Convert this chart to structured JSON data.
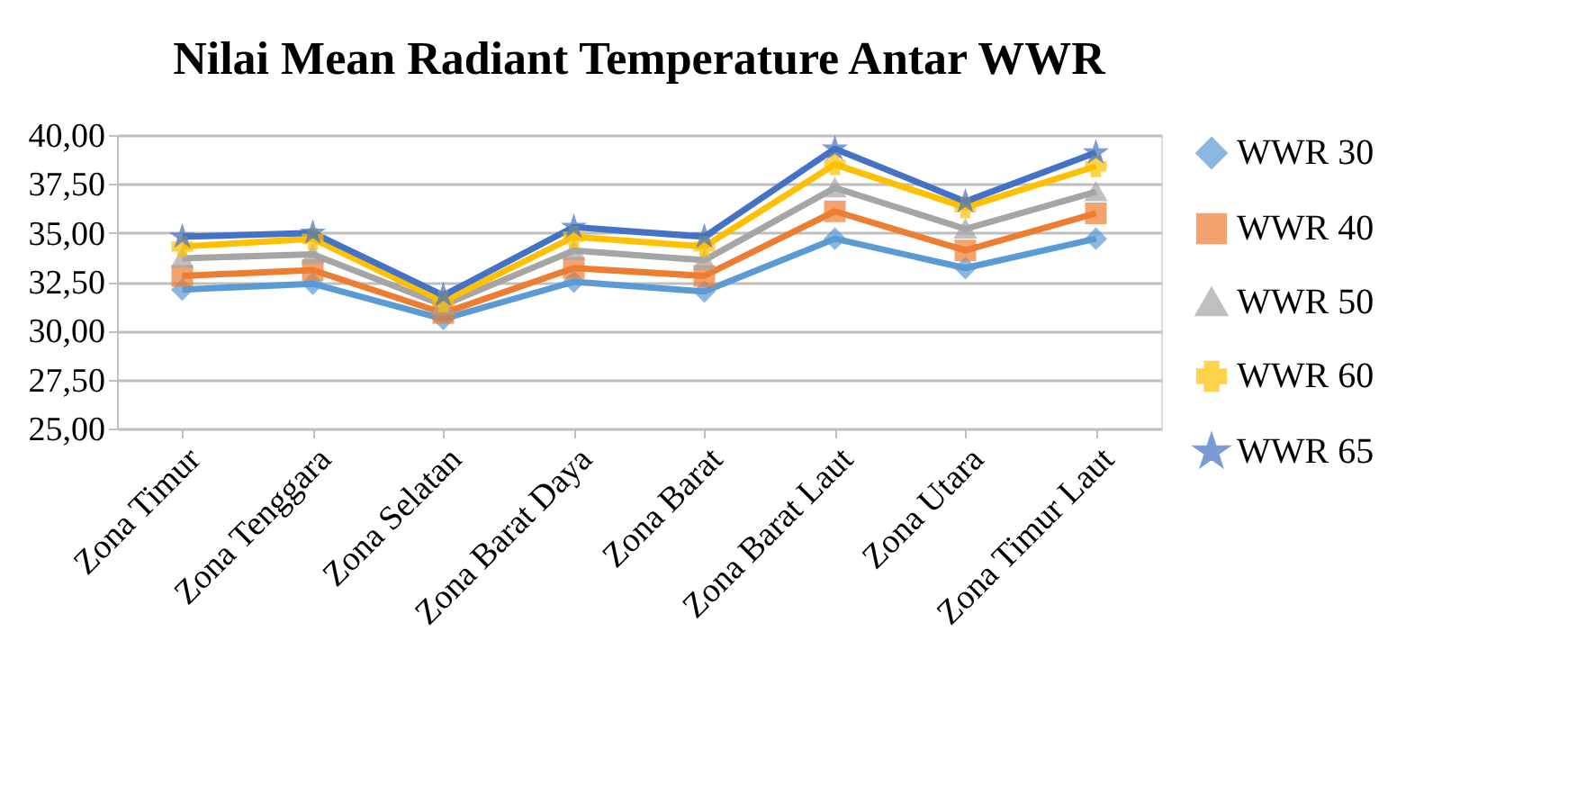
{
  "chart_data": {
    "type": "line",
    "title": "Nilai Mean Radiant Temperature Antar WWR",
    "categories": [
      "Zona Timur",
      "Zona Tenggara",
      "Zona Selatan",
      "Zona Barat Daya",
      "Zona Barat",
      "Zona Barat Laut",
      "Zona Utara",
      "Zona Timur Laut"
    ],
    "series": [
      {
        "name": "WWR 30",
        "color": "#5b9bd5",
        "marker": "diamond",
        "values": [
          32.1,
          32.4,
          30.6,
          32.5,
          32.0,
          34.7,
          33.2,
          34.7
        ]
      },
      {
        "name": "WWR 40",
        "color": "#ed7d31",
        "marker": "square",
        "values": [
          32.8,
          33.1,
          30.9,
          33.2,
          32.8,
          36.1,
          34.1,
          36.0
        ]
      },
      {
        "name": "WWR 50",
        "color": "#a5a5a5",
        "marker": "triangle",
        "values": [
          33.7,
          33.9,
          31.3,
          34.1,
          33.6,
          37.3,
          35.2,
          37.1
        ]
      },
      {
        "name": "WWR 60",
        "color": "#ffc000",
        "marker": "cross",
        "values": [
          34.3,
          34.7,
          31.5,
          34.8,
          34.3,
          38.5,
          36.3,
          38.4
        ]
      },
      {
        "name": "WWR 65",
        "color": "#4472c4",
        "marker": "star",
        "values": [
          34.8,
          35.0,
          31.8,
          35.3,
          34.8,
          39.3,
          36.6,
          39.1
        ]
      }
    ],
    "ylim": [
      25,
      40
    ],
    "yticks": [
      {
        "value": 25,
        "label": "25,00"
      },
      {
        "value": 27.5,
        "label": "27,50"
      },
      {
        "value": 30,
        "label": "30,00"
      },
      {
        "value": 32.5,
        "label": "32,50"
      },
      {
        "value": 35,
        "label": "35,00"
      },
      {
        "value": 37.5,
        "label": "37,50"
      },
      {
        "value": 40,
        "label": "40,00"
      }
    ],
    "grid": "y",
    "legend": "right"
  }
}
